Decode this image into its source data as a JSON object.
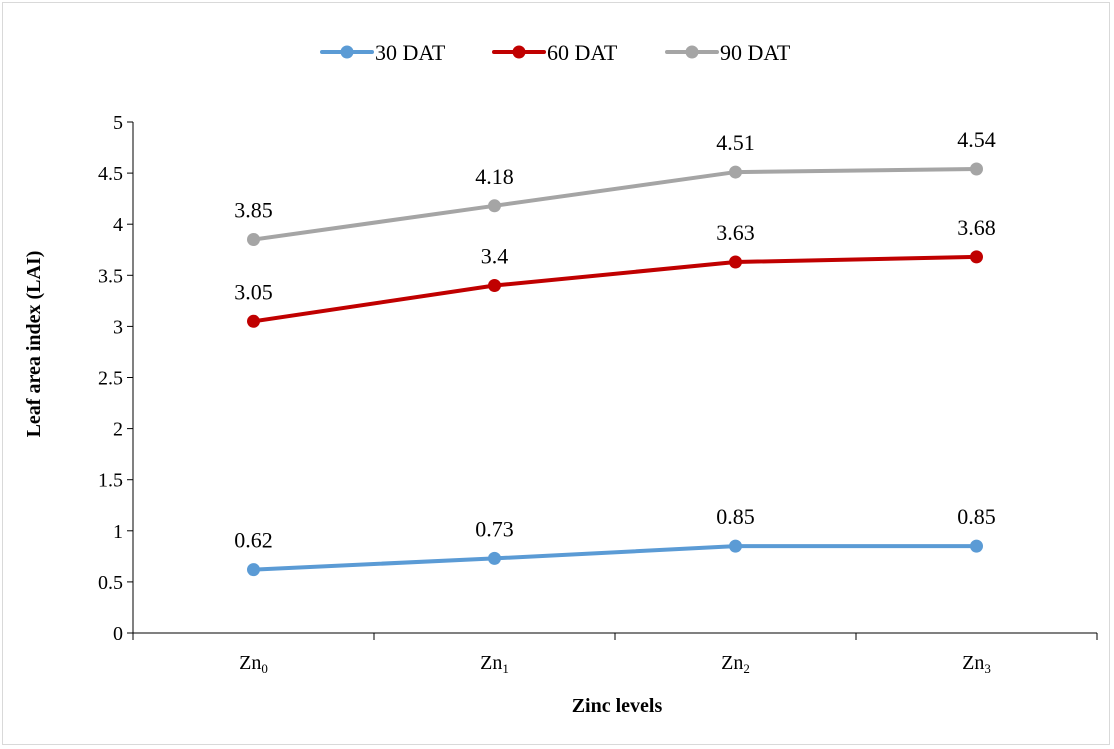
{
  "chart_data": {
    "type": "line",
    "title": "",
    "xlabel": "Zinc levels",
    "ylabel": "Leaf area index (LAI)",
    "ylim": [
      0,
      5
    ],
    "yticks": [
      "0",
      "0.5",
      "1",
      "1.5",
      "2",
      "2.5",
      "3",
      "3.5",
      "4",
      "4.5",
      "5"
    ],
    "categories": [
      {
        "base": "Zn",
        "sub": "0"
      },
      {
        "base": "Zn",
        "sub": "1"
      },
      {
        "base": "Zn",
        "sub": "2"
      },
      {
        "base": "Zn",
        "sub": "3"
      }
    ],
    "legend_position": "top-center",
    "grid": false,
    "series": [
      {
        "name": "30 DAT",
        "color": "#5b9bd5",
        "values": [
          0.62,
          0.73,
          0.85,
          0.85
        ],
        "labels": [
          "0.62",
          "0.73",
          "0.85",
          "0.85"
        ]
      },
      {
        "name": "60 DAT",
        "color": "#c00000",
        "values": [
          3.05,
          3.4,
          3.63,
          3.68
        ],
        "labels": [
          "3.05",
          "3.4",
          "3.63",
          "3.68"
        ]
      },
      {
        "name": "90 DAT",
        "color": "#a5a5a5",
        "values": [
          3.85,
          4.18,
          4.51,
          4.54
        ],
        "labels": [
          "3.85",
          "4.18",
          "4.51",
          "4.54"
        ]
      }
    ]
  }
}
